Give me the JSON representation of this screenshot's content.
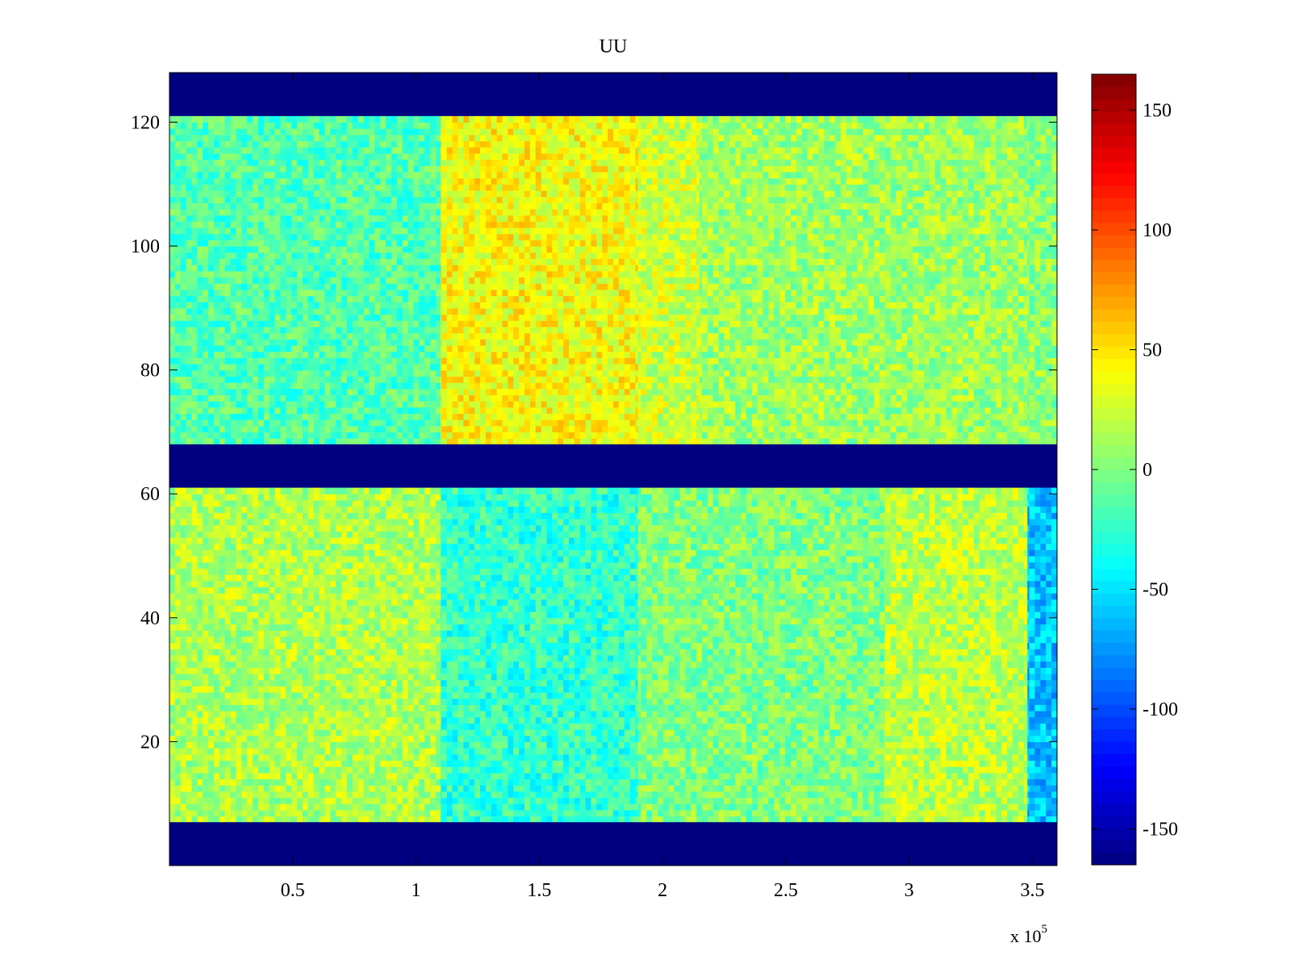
{
  "chart_data": {
    "type": "heatmap",
    "title": "UU",
    "xlabel": "",
    "ylabel": "",
    "x_multiplier_label": "x 10",
    "x_multiplier_exponent": "5",
    "xlim": [
      0,
      360000
    ],
    "ylim": [
      0,
      128
    ],
    "x_ticks": [
      {
        "value": 50000,
        "label": "0.5"
      },
      {
        "value": 100000,
        "label": "1"
      },
      {
        "value": 150000,
        "label": "1.5"
      },
      {
        "value": 200000,
        "label": "2"
      },
      {
        "value": 250000,
        "label": "2.5"
      },
      {
        "value": 300000,
        "label": "3"
      },
      {
        "value": 350000,
        "label": "3.5"
      }
    ],
    "y_ticks": [
      {
        "value": 20,
        "label": "20"
      },
      {
        "value": 40,
        "label": "40"
      },
      {
        "value": 60,
        "label": "60"
      },
      {
        "value": 80,
        "label": "80"
      },
      {
        "value": 100,
        "label": "100"
      },
      {
        "value": 120,
        "label": "120"
      }
    ],
    "colormap": "jet",
    "clim": [
      -165,
      165
    ],
    "colorbar": {
      "location": "right",
      "ticks": [
        {
          "value": 150,
          "label": "150"
        },
        {
          "value": 100,
          "label": "100"
        },
        {
          "value": 50,
          "label": "50"
        },
        {
          "value": 0,
          "label": "0"
        },
        {
          "value": -50,
          "label": "-50"
        },
        {
          "value": -100,
          "label": "-100"
        },
        {
          "value": -150,
          "label": "-150"
        }
      ]
    },
    "masked_rows": [
      {
        "y_start": 0,
        "y_end": 7,
        "value": -165
      },
      {
        "y_start": 61,
        "y_end": 68,
        "value": -165
      },
      {
        "y_start": 121,
        "y_end": 128,
        "value": -165
      }
    ],
    "regions": [
      {
        "x_start": 0,
        "x_end": 110000,
        "y_start": 68,
        "y_end": 121,
        "mean": -15
      },
      {
        "x_start": 110000,
        "x_end": 190000,
        "y_start": 68,
        "y_end": 121,
        "mean": 40
      },
      {
        "x_start": 190000,
        "x_end": 215000,
        "y_start": 68,
        "y_end": 121,
        "mean": 25
      },
      {
        "x_start": 215000,
        "x_end": 348000,
        "y_start": 68,
        "y_end": 121,
        "mean": 10
      },
      {
        "x_start": 348000,
        "x_end": 360000,
        "y_start": 68,
        "y_end": 121,
        "mean": 5
      },
      {
        "x_start": 0,
        "x_end": 110000,
        "y_start": 7,
        "y_end": 61,
        "mean": 15
      },
      {
        "x_start": 110000,
        "x_end": 190000,
        "y_start": 7,
        "y_end": 61,
        "mean": -25
      },
      {
        "x_start": 190000,
        "x_end": 290000,
        "y_start": 7,
        "y_end": 61,
        "mean": 0
      },
      {
        "x_start": 290000,
        "x_end": 348000,
        "y_start": 7,
        "y_end": 61,
        "mean": 20
      },
      {
        "x_start": 348000,
        "x_end": 360000,
        "y_start": 7,
        "y_end": 61,
        "mean": -60
      }
    ]
  }
}
